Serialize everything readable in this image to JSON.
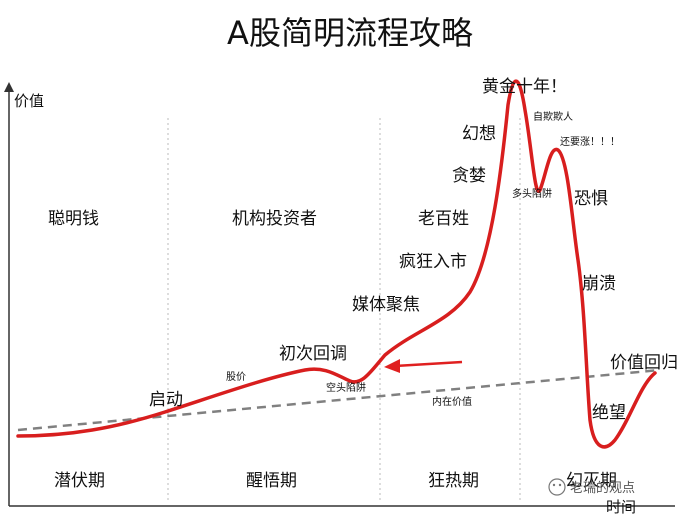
{
  "title": "A股简明流程攻略",
  "y_axis_label": "价值",
  "x_axis_label": "时间",
  "phases": [
    "潜伏期",
    "醒悟期",
    "狂热期",
    "幻灭期"
  ],
  "participants": [
    "聪明钱",
    "机构投资者",
    "老百姓"
  ],
  "curve_labels": {
    "start": "启动",
    "first_pullback": "初次回调",
    "media": "媒体聚焦",
    "mania": "疯狂入市",
    "greed": "贪婪",
    "delusion": "幻想",
    "peak": "黄金十年！",
    "fear": "恐惧",
    "collapse": "崩溃",
    "despair": "绝望",
    "return": "价值回归"
  },
  "small_labels": {
    "stock_price": "股价",
    "short_trap": "空头陷阱",
    "bull_trap": "多头陷阱",
    "self_deception": "自欺欺人",
    "still_rising": "还要涨！！！",
    "intrinsic_value": "内在价值"
  },
  "watermark": "老瑞的观点",
  "colors": {
    "curve": "#d81e1e",
    "value_line": "#808080",
    "arrow": "#e02020",
    "divider": "#bbbbbb",
    "axis": "#333333"
  }
}
